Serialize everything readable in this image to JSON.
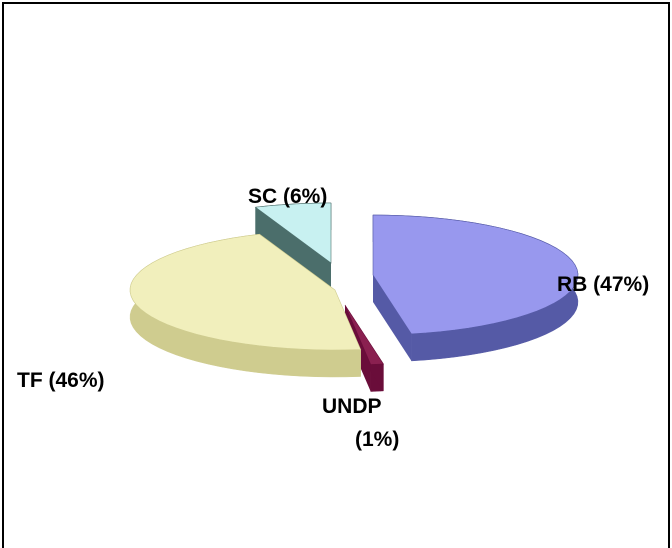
{
  "chart_data": {
    "type": "pie",
    "title": "",
    "style": "3d-exploded",
    "slices": [
      {
        "label": "RB (47%)",
        "value": 47,
        "color": "#9898ee",
        "side_color": "#555aa6"
      },
      {
        "label": "UNDP",
        "label_line2": "(1%)",
        "value": 1,
        "color": "#8a2050",
        "side_color": "#6a0d3a"
      },
      {
        "label": "TF (46%)",
        "value": 46,
        "color": "#f1efbc",
        "side_color": "#cfcc8f"
      },
      {
        "label": "SC (6%)",
        "value": 6,
        "color": "#c8f1f1",
        "side_color": "#4b6e6b"
      }
    ]
  }
}
